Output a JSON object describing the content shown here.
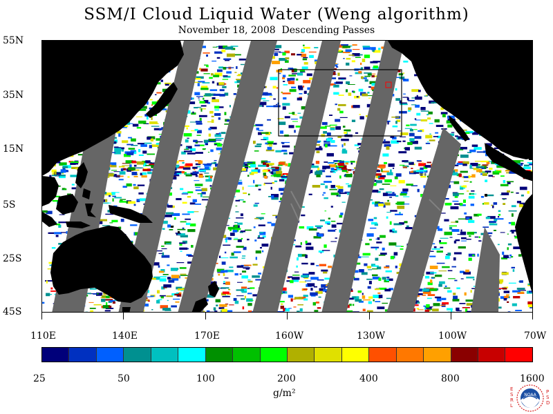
{
  "title": "SSM/I Cloud Liquid Water (Weng algorithm)",
  "subtitle": "November 18, 2008  Descending Passes",
  "lat_labels": [
    "55N",
    "35N",
    "15N",
    "5S",
    "25S",
    "45S"
  ],
  "lon_labels": [
    "110E",
    "140E",
    "170E",
    "160W",
    "130W",
    "100W",
    "70W"
  ],
  "colorbar": {
    "units": "g/m²",
    "tick_labels": [
      "25",
      "50",
      "100",
      "200",
      "400",
      "800",
      "1600"
    ],
    "colors": [
      "#00007a",
      "#0030c0",
      "#0060ff",
      "#009090",
      "#00c0c0",
      "#00ffff",
      "#009000",
      "#00c000",
      "#00ff00",
      "#b0b000",
      "#e0e000",
      "#ffff00",
      "#ff5000",
      "#ff7800",
      "#ffa000",
      "#8a0000",
      "#c80000",
      "#ff0000"
    ]
  },
  "colors": {
    "land": "#000000",
    "no_data": "#666666",
    "ocean_clear": "#ffffff"
  },
  "logo": {
    "left_letters": "ESRL",
    "right_letters": "PSD",
    "center_text": "NOAA"
  }
}
